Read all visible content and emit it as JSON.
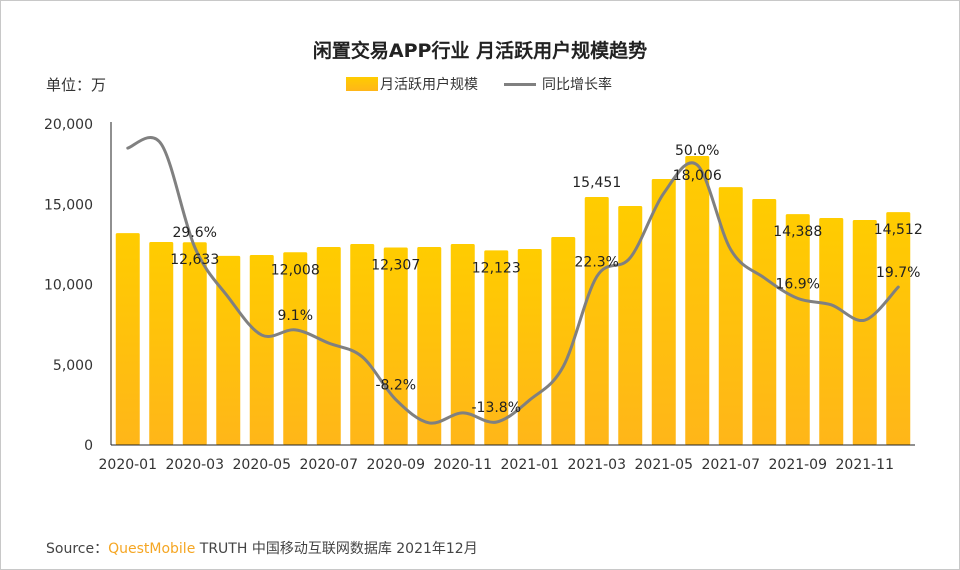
{
  "header": {
    "unit_label": "单位：万"
  },
  "legend": {
    "bar_label": "月活跃用户规模",
    "line_label": "同比增长率"
  },
  "source": {
    "prefix": "Source：",
    "brand": "QuestMobile",
    "rest": "TRUTH 中国移动互联网数据库 2021年12月"
  },
  "colors": {
    "bar_top": "#ffcc00",
    "bar_bottom": "#ffb619",
    "line": "#808080",
    "brand": "#f5a623"
  },
  "chart_data": {
    "type": "bar",
    "title": "闲置交易APP行业 月活跃用户规模趋势",
    "categories": [
      "2020-01",
      "2020-02",
      "2020-03",
      "2020-04",
      "2020-05",
      "2020-06",
      "2020-07",
      "2020-08",
      "2020-09",
      "2020-10",
      "2020-11",
      "2020-12",
      "2021-01",
      "2021-02",
      "2021-03",
      "2021-04",
      "2021-05",
      "2021-06",
      "2021-07",
      "2021-08",
      "2021-09",
      "2021-10",
      "2021-11",
      "2021-12"
    ],
    "xtick_labels": [
      "2020-01",
      "2020-03",
      "2020-05",
      "2020-07",
      "2020-09",
      "2020-11",
      "2021-01",
      "2021-03",
      "2021-05",
      "2021-07",
      "2021-09",
      "2021-11"
    ],
    "ylim": [
      0,
      20000
    ],
    "yticks": [
      "0",
      "5,000",
      "10,000",
      "15,000",
      "20,000"
    ],
    "grid": false,
    "legend_position": "top",
    "series": [
      {
        "name": "月活跃用户规模",
        "type": "bar",
        "values": [
          13200,
          12650,
          12633,
          11780,
          11840,
          12008,
          12340,
          12520,
          12307,
          12340,
          12520,
          12123,
          12210,
          12960,
          15451,
          14890,
          16570,
          18006,
          16070,
          15330,
          14388,
          14140,
          14020,
          14512
        ],
        "labels": {
          "2": "12,633",
          "5": "12,008",
          "8": "12,307",
          "11": "12,123",
          "14": "15,451",
          "17": "18,006",
          "20": "14,388",
          "23": "14,512"
        }
      },
      {
        "name": "同比增长率",
        "type": "line",
        "unit": "%",
        "values": [
          54.2,
          55.2,
          29.6,
          17.2,
          7.8,
          9.1,
          5.8,
          2.4,
          -8.2,
          -14.0,
          -11.5,
          -13.8,
          -8.3,
          0.0,
          22.3,
          27.0,
          43.0,
          50.0,
          29.0,
          22.0,
          16.9,
          15.3,
          11.5,
          19.7
        ],
        "labels": {
          "2": "29.6%",
          "5": "9.1%",
          "8": "-8.2%",
          "11": "-13.8%",
          "14": "22.3%",
          "17": "50.0%",
          "20": "16.9%",
          "23": "19.7%"
        }
      }
    ]
  }
}
